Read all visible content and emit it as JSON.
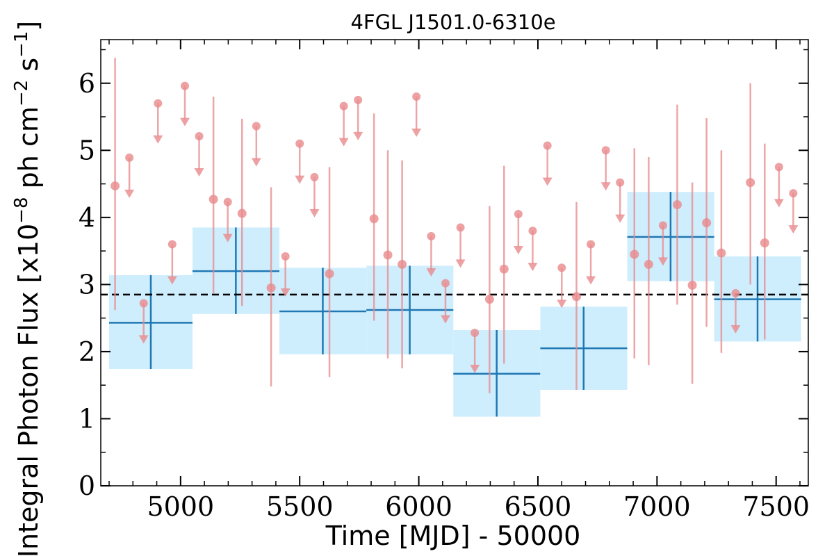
{
  "chart_data": {
    "type": "scatter",
    "title": "4FGL J1501.0-6310e",
    "xlabel": "Time [MJD] - 50000",
    "ylabel_parts": {
      "before": "Integral Photon Flux [x10",
      "exp1": "−8",
      "middle": " ph cm",
      "exp2": "−2",
      "s": " s",
      "exp3": "−1",
      "after": "]"
    },
    "xlim": [
      4665,
      7635
    ],
    "ylim": [
      0,
      6.65
    ],
    "x_ticks": [
      5000,
      5500,
      6000,
      6500,
      7000,
      7500
    ],
    "x_tick_labels": [
      "5000",
      "5500",
      "6000",
      "6500",
      "7000",
      "7500"
    ],
    "y_ticks": [
      0,
      1,
      2,
      3,
      4,
      5,
      6
    ],
    "y_tick_labels": [
      "0",
      "1",
      "2",
      "3",
      "4",
      "5",
      "6"
    ],
    "grid": false,
    "colors": {
      "points": "#e8898c",
      "bins_fill": "#cfeefd",
      "bins_line": "#1f77b4",
      "mean_line": "#000000"
    },
    "mean_flux": 2.85,
    "binned": [
      {
        "x0": 4700,
        "x1": 5050,
        "xc": 4875,
        "y": 2.43,
        "ylo": 1.74,
        "yhi": 3.14
      },
      {
        "x0": 5050,
        "x1": 5415,
        "xc": 5232,
        "y": 3.2,
        "ylo": 2.56,
        "yhi": 3.85
      },
      {
        "x0": 5415,
        "x1": 5780,
        "xc": 5597,
        "y": 2.6,
        "ylo": 1.96,
        "yhi": 3.25
      },
      {
        "x0": 5780,
        "x1": 6145,
        "xc": 5962,
        "y": 2.62,
        "ylo": 1.96,
        "yhi": 3.28
      },
      {
        "x0": 6145,
        "x1": 6510,
        "xc": 6327,
        "y": 1.67,
        "ylo": 1.03,
        "yhi": 2.32
      },
      {
        "x0": 6510,
        "x1": 6875,
        "xc": 6692,
        "y": 2.05,
        "ylo": 1.43,
        "yhi": 2.67
      },
      {
        "x0": 6875,
        "x1": 7240,
        "xc": 7057,
        "y": 3.71,
        "ylo": 3.05,
        "yhi": 4.38
      },
      {
        "x0": 7240,
        "x1": 7605,
        "xc": 7422,
        "y": 2.78,
        "ylo": 2.15,
        "yhi": 3.42
      }
    ],
    "detections": [
      {
        "x": 4725,
        "y": 4.47,
        "ylo": 2.62,
        "yhi": 6.38
      },
      {
        "x": 5138,
        "y": 4.27,
        "ylo": 2.86,
        "yhi": 5.8
      },
      {
        "x": 5258,
        "y": 4.06,
        "ylo": 2.68,
        "yhi": 5.47
      },
      {
        "x": 5380,
        "y": 2.95,
        "ylo": 1.48,
        "yhi": 4.45
      },
      {
        "x": 5625,
        "y": 3.16,
        "ylo": 1.62,
        "yhi": 4.75
      },
      {
        "x": 5812,
        "y": 3.98,
        "ylo": 2.46,
        "yhi": 5.55
      },
      {
        "x": 5870,
        "y": 3.44,
        "ylo": 1.9,
        "yhi": 5.0
      },
      {
        "x": 5930,
        "y": 3.3,
        "ylo": 1.75,
        "yhi": 4.85
      },
      {
        "x": 6297,
        "y": 2.78,
        "ylo": 1.38,
        "yhi": 4.17
      },
      {
        "x": 6358,
        "y": 3.23,
        "ylo": 1.82,
        "yhi": 4.77
      },
      {
        "x": 6662,
        "y": 2.82,
        "ylo": 1.43,
        "yhi": 4.23
      },
      {
        "x": 6905,
        "y": 3.45,
        "ylo": 1.9,
        "yhi": 5.03
      },
      {
        "x": 6965,
        "y": 3.3,
        "ylo": 1.8,
        "yhi": 4.9
      },
      {
        "x": 7085,
        "y": 4.19,
        "ylo": 2.7,
        "yhi": 5.68
      },
      {
        "x": 7148,
        "y": 2.99,
        "ylo": 1.52,
        "yhi": 4.52
      },
      {
        "x": 7208,
        "y": 3.92,
        "ylo": 2.37,
        "yhi": 5.48
      },
      {
        "x": 7270,
        "y": 3.47,
        "ylo": 1.98,
        "yhi": 5.0
      },
      {
        "x": 7392,
        "y": 4.52,
        "ylo": 3.0,
        "yhi": 6.0
      },
      {
        "x": 7452,
        "y": 3.62,
        "ylo": 2.18,
        "yhi": 5.1
      }
    ],
    "upper_limits": [
      {
        "x": 4785,
        "y": 4.89
      },
      {
        "x": 4845,
        "y": 2.72
      },
      {
        "x": 4905,
        "y": 5.7
      },
      {
        "x": 4965,
        "y": 3.6
      },
      {
        "x": 5018,
        "y": 5.96
      },
      {
        "x": 5078,
        "y": 5.21
      },
      {
        "x": 5198,
        "y": 4.23
      },
      {
        "x": 5318,
        "y": 5.36
      },
      {
        "x": 5440,
        "y": 3.42
      },
      {
        "x": 5500,
        "y": 5.1
      },
      {
        "x": 5562,
        "y": 4.6
      },
      {
        "x": 5685,
        "y": 5.66
      },
      {
        "x": 5745,
        "y": 5.75
      },
      {
        "x": 5990,
        "y": 5.8
      },
      {
        "x": 6052,
        "y": 3.72
      },
      {
        "x": 6112,
        "y": 3.02
      },
      {
        "x": 6175,
        "y": 3.85
      },
      {
        "x": 6235,
        "y": 2.28
      },
      {
        "x": 6418,
        "y": 4.05
      },
      {
        "x": 6478,
        "y": 3.8
      },
      {
        "x": 6540,
        "y": 5.07
      },
      {
        "x": 6600,
        "y": 3.25
      },
      {
        "x": 6722,
        "y": 3.6
      },
      {
        "x": 6785,
        "y": 5.0
      },
      {
        "x": 6845,
        "y": 4.52
      },
      {
        "x": 7025,
        "y": 3.88
      },
      {
        "x": 7330,
        "y": 2.87
      },
      {
        "x": 7512,
        "y": 4.75
      },
      {
        "x": 7572,
        "y": 4.36
      }
    ]
  }
}
